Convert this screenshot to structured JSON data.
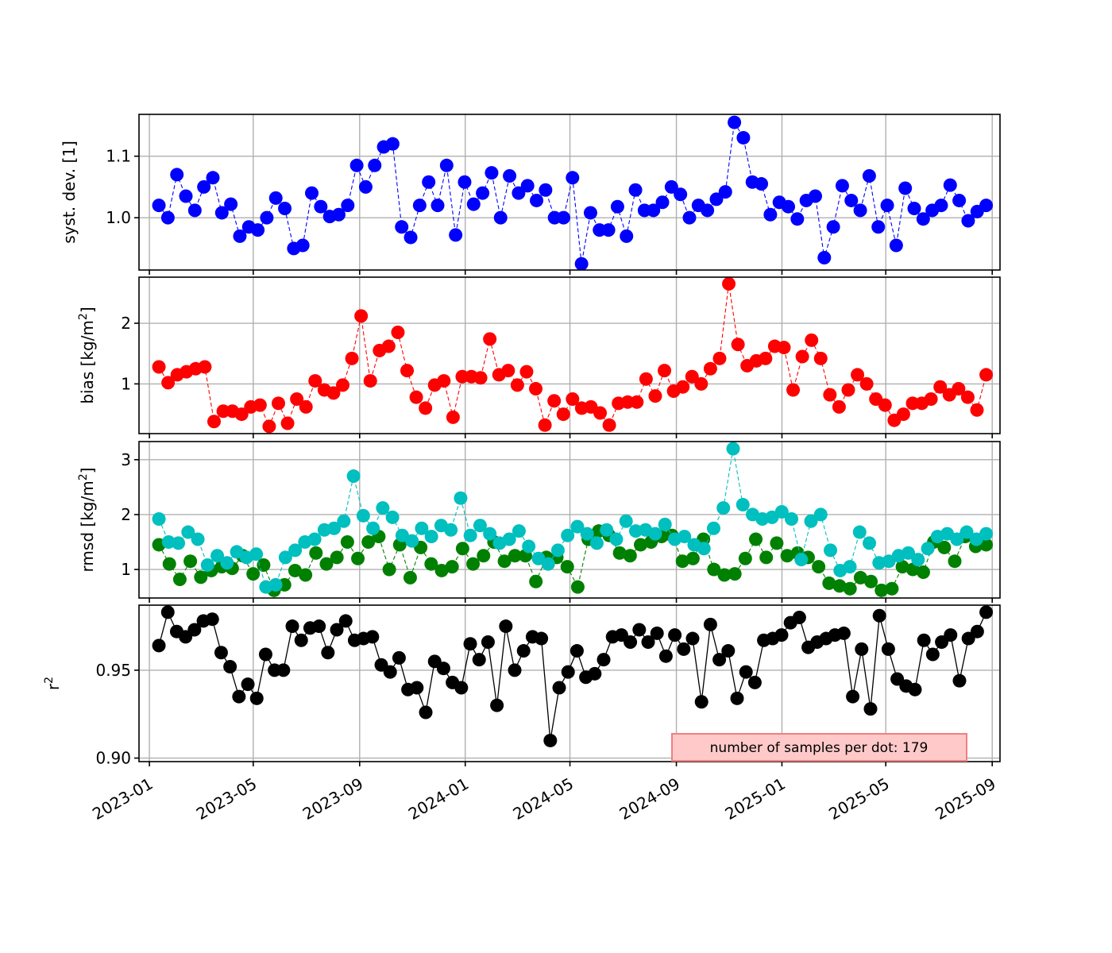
{
  "chart_data": {
    "type": "line",
    "x_axis": {
      "scale": "date",
      "lim": [
        "2022-12-20",
        "2025-09-10"
      ],
      "ticks": [
        "2023-01-01",
        "2023-05-01",
        "2023-09-01",
        "2024-01-01",
        "2024-05-01",
        "2024-09-01",
        "2025-01-01",
        "2025-05-01",
        "2025-09-01"
      ],
      "tick_labels": [
        "2023-01",
        "2023-05",
        "2023-09",
        "2024-01",
        "2024-05",
        "2024-09",
        "2025-01",
        "2025-05",
        "2025-09"
      ],
      "tick_label_rotation": 30
    },
    "grid": true,
    "annotation": {
      "text": "number of samples per dot: 179",
      "facecolor": "#ffc9c9",
      "edgecolor": "#f08080",
      "placement": "lower-right of bottom panel"
    },
    "panels": [
      {
        "key": "sde",
        "ylabel": "syst. dev. [1]",
        "ylabel_base": "",
        "ylabel_sup": "",
        "ylabel_tail": "",
        "ylim": [
          0.915,
          1.168
        ],
        "yticks": [
          1.0,
          1.1
        ],
        "ytick_labels": [
          "1.0",
          "1.1"
        ],
        "series": [
          {
            "name": "",
            "color": "#0000ff",
            "linestyle": "dashed",
            "values": [
              1.02,
              1.0,
              1.07,
              1.035,
              1.012,
              1.05,
              1.065,
              1.008,
              1.022,
              0.97,
              0.985,
              0.98,
              1.0,
              1.032,
              1.015,
              0.95,
              0.955,
              1.04,
              1.018,
              1.002,
              1.005,
              1.02,
              1.085,
              1.05,
              1.085,
              1.115,
              1.12,
              0.985,
              0.968,
              1.02,
              1.058,
              1.02,
              1.085,
              0.972,
              1.058,
              1.022,
              1.04,
              1.073,
              1.0,
              1.068,
              1.04,
              1.052,
              1.028,
              1.045,
              1.0,
              1.0,
              1.065,
              0.925,
              1.008,
              0.98,
              0.98,
              1.018,
              0.97,
              1.045,
              1.012,
              1.012,
              1.025,
              1.05,
              1.038,
              1.0,
              1.02,
              1.012,
              1.03,
              1.042,
              1.155,
              1.13,
              1.058,
              1.055,
              1.005,
              1.025,
              1.018,
              0.998,
              1.028,
              1.035,
              0.935,
              0.985,
              1.052,
              1.028,
              1.012,
              1.068,
              0.985,
              1.02,
              0.955,
              1.048,
              1.015,
              0.998,
              1.012,
              1.02,
              1.053,
              1.028,
              0.995,
              1.01,
              1.02
            ]
          }
        ]
      },
      {
        "key": "bias",
        "ylabel": "",
        "ylabel_base": "bias [kg/m",
        "ylabel_sup": "2",
        "ylabel_tail": "]",
        "ylim": [
          0.18,
          2.76
        ],
        "yticks": [
          1,
          2
        ],
        "ytick_labels": [
          "1",
          "2"
        ],
        "series": [
          {
            "name": "",
            "color": "#ff0000",
            "linestyle": "dashed",
            "values": [
              1.28,
              1.02,
              1.15,
              1.2,
              1.25,
              1.28,
              0.38,
              0.55,
              0.55,
              0.5,
              0.62,
              0.65,
              0.3,
              0.68,
              0.35,
              0.75,
              0.62,
              1.05,
              0.9,
              0.85,
              0.98,
              1.42,
              2.12,
              1.05,
              1.55,
              1.62,
              1.85,
              1.22,
              0.78,
              0.6,
              0.98,
              1.05,
              0.45,
              1.12,
              1.12,
              1.1,
              1.74,
              1.15,
              1.22,
              0.98,
              1.2,
              0.92,
              0.32,
              0.72,
              0.5,
              0.75,
              0.6,
              0.62,
              0.52,
              0.32,
              0.68,
              0.7,
              0.7,
              1.08,
              0.8,
              1.22,
              0.88,
              0.95,
              1.12,
              1.0,
              1.25,
              1.42,
              2.65,
              1.65,
              1.3,
              1.38,
              1.42,
              1.62,
              1.6,
              0.9,
              1.45,
              1.72,
              1.42,
              0.82,
              0.62,
              0.9,
              1.15,
              1.0,
              0.75,
              0.65,
              0.4,
              0.5,
              0.68,
              0.68,
              0.75,
              0.95,
              0.82,
              0.92,
              0.78,
              0.57,
              1.15
            ]
          }
        ]
      },
      {
        "key": "rmsd",
        "ylabel": "",
        "ylabel_base": "rmsd [kg/m",
        "ylabel_sup": "2",
        "ylabel_tail": "]",
        "ylim": [
          0.48,
          3.33
        ],
        "yticks": [
          1,
          2,
          3
        ],
        "ytick_labels": [
          "1",
          "2",
          "3"
        ],
        "series": [
          {
            "name": "",
            "color": "#008000",
            "linestyle": "dashed",
            "values": [
              1.45,
              1.1,
              0.82,
              1.15,
              0.86,
              0.98,
              1.05,
              1.02,
              1.25,
              0.92,
              1.08,
              0.62,
              0.72,
              0.98,
              0.9,
              1.3,
              1.1,
              1.22,
              1.5,
              1.2,
              1.5,
              1.6,
              1.0,
              1.45,
              0.85,
              1.4,
              1.1,
              0.98,
              1.05,
              1.38,
              1.1,
              1.25,
              1.5,
              1.15,
              1.25,
              1.25,
              0.78,
              1.22,
              1.22,
              1.05,
              0.68,
              1.55,
              1.7,
              1.62,
              1.3,
              1.25,
              1.45,
              1.5,
              1.6,
              1.62,
              1.15,
              1.2,
              1.55,
              1.0,
              0.9,
              0.92,
              1.2,
              1.55,
              1.22,
              1.48,
              1.25,
              1.3,
              1.22,
              1.05,
              0.75,
              0.7,
              0.65,
              0.85,
              0.78,
              0.62,
              0.65,
              1.05,
              1.0,
              0.95,
              1.5,
              1.4,
              1.15,
              1.6,
              1.42,
              1.45
            ]
          },
          {
            "name": "",
            "color": "#00bfbf",
            "linestyle": "dashed",
            "values": [
              1.92,
              1.5,
              1.48,
              1.68,
              1.55,
              1.08,
              1.25,
              1.12,
              1.32,
              1.22,
              1.28,
              0.68,
              0.72,
              1.22,
              1.35,
              1.5,
              1.55,
              1.72,
              1.75,
              1.88,
              2.7,
              1.98,
              1.75,
              2.12,
              1.95,
              1.62,
              1.52,
              1.75,
              1.6,
              1.8,
              1.72,
              2.3,
              1.62,
              1.8,
              1.65,
              1.48,
              1.55,
              1.7,
              1.42,
              1.2,
              1.1,
              1.35,
              1.62,
              1.78,
              1.65,
              1.48,
              1.72,
              1.55,
              1.88,
              1.7,
              1.72,
              1.65,
              1.82,
              1.55,
              1.6,
              1.45,
              1.38,
              1.75,
              2.12,
              3.2,
              2.18,
              2.0,
              1.92,
              1.95,
              2.05,
              1.92,
              1.18,
              1.88,
              2.0,
              1.35,
              0.98,
              1.05,
              1.68,
              1.48,
              1.12,
              1.15,
              1.25,
              1.3,
              1.18,
              1.38,
              1.6,
              1.65,
              1.55,
              1.68,
              1.55,
              1.65
            ]
          }
        ]
      },
      {
        "key": "r2",
        "ylabel": "",
        "ylabel_base": "r",
        "ylabel_sup": "2",
        "ylabel_tail": "",
        "ylim": [
          0.898,
          0.987
        ],
        "yticks": [
          0.9,
          0.95
        ],
        "ytick_labels": [
          "0.90",
          "0.95"
        ],
        "series": [
          {
            "name": "",
            "color": "#000000",
            "linestyle": "solid",
            "values": [
              0.964,
              0.983,
              0.972,
              0.969,
              0.973,
              0.978,
              0.979,
              0.96,
              0.952,
              0.935,
              0.942,
              0.934,
              0.959,
              0.95,
              0.95,
              0.975,
              0.967,
              0.974,
              0.975,
              0.96,
              0.973,
              0.978,
              0.967,
              0.968,
              0.969,
              0.953,
              0.949,
              0.957,
              0.939,
              0.94,
              0.926,
              0.955,
              0.951,
              0.943,
              0.94,
              0.965,
              0.956,
              0.966,
              0.93,
              0.975,
              0.95,
              0.961,
              0.969,
              0.968,
              0.91,
              0.94,
              0.949,
              0.961,
              0.946,
              0.948,
              0.956,
              0.969,
              0.97,
              0.966,
              0.973,
              0.966,
              0.971,
              0.958,
              0.97,
              0.962,
              0.968,
              0.932,
              0.976,
              0.956,
              0.961,
              0.934,
              0.949,
              0.943,
              0.967,
              0.968,
              0.97,
              0.977,
              0.98,
              0.963,
              0.966,
              0.968,
              0.97,
              0.971,
              0.935,
              0.962,
              0.928,
              0.981,
              0.962,
              0.945,
              0.941,
              0.939,
              0.967,
              0.959,
              0.966,
              0.97,
              0.944,
              0.968,
              0.972,
              0.983
            ]
          }
        ]
      }
    ]
  }
}
